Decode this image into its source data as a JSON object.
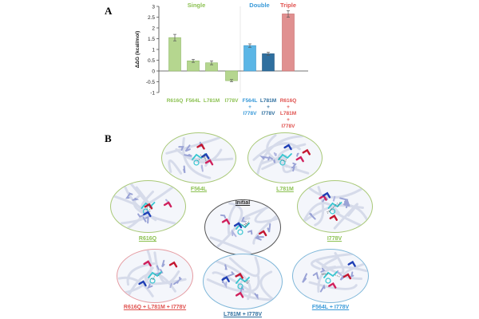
{
  "panels": {
    "a_label": "A",
    "b_label": "B"
  },
  "colors": {
    "single": "#8cc152",
    "double": "#3a9ad9",
    "triple": "#e0524f",
    "bar_single": "#b5d68f",
    "bar_f564l_i778v": "#5bb6e6",
    "bar_l781m_i778v": "#2f6f9f",
    "bar_triple": "#e09090",
    "initial": "#222222"
  },
  "chart_data": {
    "type": "bar",
    "title": "",
    "ylabel": "ΔΔG (kcal/mol)",
    "xlabel": "",
    "ylim": [
      -1,
      3
    ],
    "yticks": [
      "-1",
      "-0.5",
      "0",
      "0.5",
      "1",
      "1.5",
      "2",
      "2.5",
      "3"
    ],
    "groups": [
      {
        "name": "Single",
        "color": "#8cc152"
      },
      {
        "name": "Double",
        "color": "#3a9ad9"
      },
      {
        "name": "Triple",
        "color": "#e0524f"
      }
    ],
    "categories": [
      {
        "lines": [
          "R616Q"
        ],
        "color": "#8cc152"
      },
      {
        "lines": [
          "F564L"
        ],
        "color": "#8cc152"
      },
      {
        "lines": [
          "L781M"
        ],
        "color": "#8cc152"
      },
      {
        "lines": [
          "I778V"
        ],
        "color": "#8cc152"
      },
      {
        "lines": [
          "F564L",
          "+",
          "I778V"
        ],
        "color": "#3a9ad9"
      },
      {
        "lines": [
          "L781M",
          "+",
          "I778V"
        ],
        "color": "#2f6f9f"
      },
      {
        "lines": [
          "R616Q",
          "+",
          "L781M",
          "+",
          "I778V"
        ],
        "color": "#e0524f"
      }
    ],
    "values": [
      1.55,
      0.47,
      0.38,
      -0.45,
      1.18,
      0.8,
      2.65
    ],
    "errors": [
      0.15,
      0.07,
      0.09,
      0.05,
      0.08,
      0.07,
      0.15
    ]
  },
  "structures": [
    {
      "key": "initial",
      "label": "Initial",
      "label_color": "#222222"
    },
    {
      "key": "f564l",
      "label": "F564L",
      "label_color": "#8cc152"
    },
    {
      "key": "l781m",
      "label": "L781M",
      "label_color": "#8cc152"
    },
    {
      "key": "r616q",
      "label": "R616Q",
      "label_color": "#8cc152"
    },
    {
      "key": "i778v",
      "label": "I778V",
      "label_color": "#8cc152"
    },
    {
      "key": "triple",
      "label": "R616Q + L781M + I778V",
      "label_color": "#e0524f"
    },
    {
      "key": "l781m_i778v",
      "label": "L781M + I778V",
      "label_color": "#2f6f9f"
    },
    {
      "key": "f564l_i778v",
      "label": "F564L + I778V",
      "label_color": "#3a9ad9"
    }
  ]
}
